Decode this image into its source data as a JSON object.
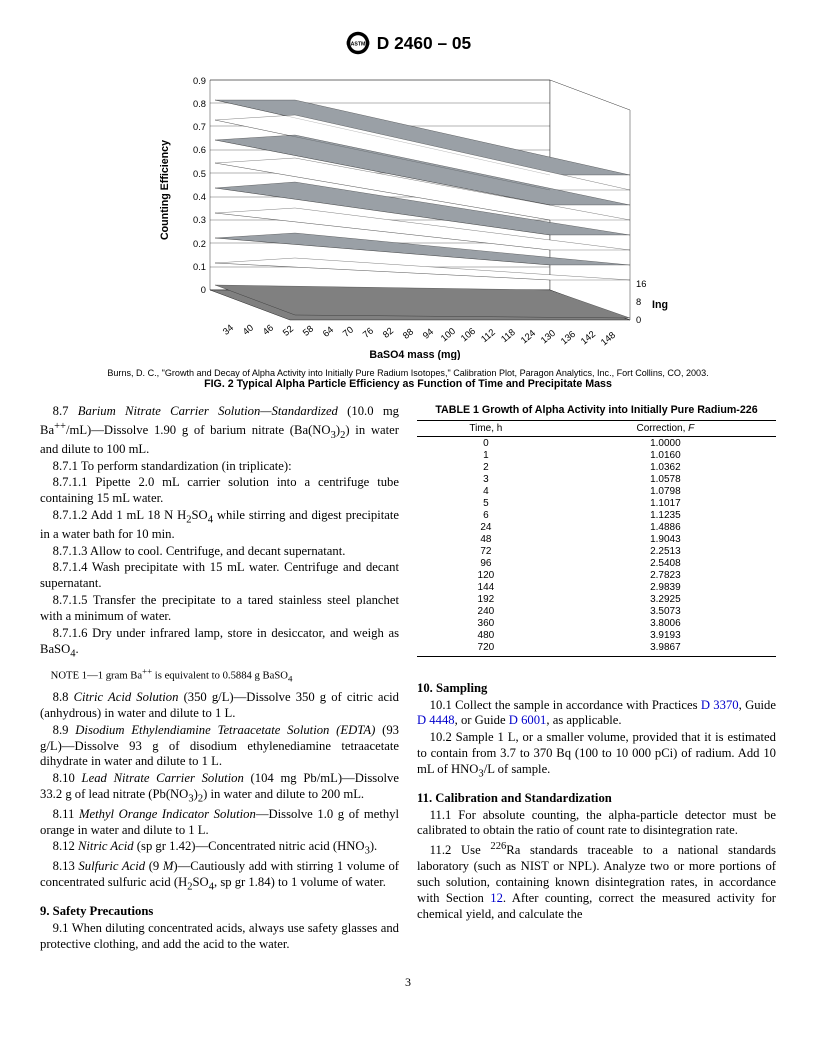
{
  "header": {
    "designation": "D 2460 – 05"
  },
  "figure": {
    "source_citation": "Burns, D. C., \"Growth and Decay of Alpha Activity into Initially Pure Radium Isotopes,\" Calibration Plot, Paragon Analytics, Inc., Fort Collins, CO, 2003.",
    "caption": "FIG. 2 Typical Alpha Particle Efficiency as Function of Time and Precipitate Mass",
    "y_axis_label": "Counting Efficiency",
    "x_axis_label": "BaSO4 mass (mg)",
    "z_axis_label": "Ingrowth Days",
    "y_ticks": [
      "0",
      "0.1",
      "0.2",
      "0.3",
      "0.4",
      "0.5",
      "0.6",
      "0.7",
      "0.8",
      "0.9"
    ],
    "x_ticks": [
      "34",
      "40",
      "46",
      "52",
      "58",
      "64",
      "70",
      "76",
      "82",
      "88",
      "94",
      "100",
      "106",
      "112",
      "118",
      "124",
      "130",
      "136",
      "142",
      "148"
    ],
    "z_ticks": [
      "0",
      "8",
      "16"
    ],
    "band_colors": [
      "#9aa0a6",
      "#ffffff",
      "#9aa0a6",
      "#ffffff",
      "#9aa0a6",
      "#ffffff",
      "#9aa0a6",
      "#ffffff",
      "#9aa0a6"
    ],
    "grid_color": "#000000",
    "floor_color": "#808080"
  },
  "left_column": {
    "p87": "8.7 Barium Nitrate Carrier Solution—Standardized (10.0 mg Ba++/mL)—Dissolve 1.90 g of barium nitrate (Ba(NO3)2) in water and dilute to 100 mL.",
    "p871": "8.7.1 To perform standardization (in triplicate):",
    "p8711": "8.7.1.1 Pipette 2.0 mL carrier solution into a centrifuge tube containing 15 mL water.",
    "p8712": "8.7.1.2 Add 1 mL 18 N H2SO4 while stirring and digest precipitate in a water bath for 10 min.",
    "p8713": "8.7.1.3 Allow to cool. Centrifuge, and decant supernatant.",
    "p8714": "8.7.1.4 Wash precipitate with 15 mL water. Centrifuge and decant supernatant.",
    "p8715": "8.7.1.5 Transfer the precipitate to a tared stainless steel planchet with a minimum of water.",
    "p8716": "8.7.1.6 Dry under infrared lamp, store in desiccator, and weigh as BaSO4.",
    "note1": "NOTE 1—1 gram Ba++ is equivalent to 0.5884 g BaSO4",
    "p88": "8.8 Citric Acid Solution (350 g/L)—Dissolve 350 g of citric acid (anhydrous) in water and dilute to 1 L.",
    "p89": "8.9 Disodium Ethylendiamine Tetraacetate Solution (EDTA) (93 g/L)—Dissolve 93 g of disodium ethylenediamine tetraacetate dihydrate in water and dilute to 1 L.",
    "p810": "8.10 Lead Nitrate Carrier Solution (104 mg Pb/mL)—Dissolve 33.2 g of lead nitrate (Pb(NO3)2) in water and dilute to 200 mL.",
    "p811": "8.11 Methyl Orange Indicator Solution—Dissolve 1.0 g of methyl orange in water and dilute to 1 L.",
    "p812": "8.12 Nitric Acid (sp gr 1.42)—Concentrated nitric acid (HNO3).",
    "p813": "8.13 Sulfuric Acid (9 M)—Cautiously add with stirring 1 volume of concentrated sulfuric acid (H2SO4, sp gr 1.84) to 1 volume of water.",
    "s9_head": "9. Safety Precautions",
    "p91": "9.1 When diluting concentrated acids, always use safety glasses and protective clothing, and add the acid to the water."
  },
  "table1": {
    "title": "TABLE 1  Growth of Alpha Activity into Initially Pure Radium-226",
    "col_time": "Time, h",
    "col_corr": "Correction, F",
    "rows": [
      [
        "0",
        "1.0000"
      ],
      [
        "1",
        "1.0160"
      ],
      [
        "2",
        "1.0362"
      ],
      [
        "3",
        "1.0578"
      ],
      [
        "4",
        "1.0798"
      ],
      [
        "5",
        "1.1017"
      ],
      [
        "6",
        "1.1235"
      ],
      [
        "24",
        "1.4886"
      ],
      [
        "48",
        "1.9043"
      ],
      [
        "72",
        "2.2513"
      ],
      [
        "96",
        "2.5408"
      ],
      [
        "120",
        "2.7823"
      ],
      [
        "144",
        "2.9839"
      ],
      [
        "192",
        "3.2925"
      ],
      [
        "240",
        "3.5073"
      ],
      [
        "360",
        "3.8006"
      ],
      [
        "480",
        "3.9193"
      ],
      [
        "720",
        "3.9867"
      ]
    ]
  },
  "right_column": {
    "s10_head": "10. Sampling",
    "p101a": "10.1 Collect the sample in accordance with Practices ",
    "p101_link1": "D 3370",
    "p101b": ", Guide ",
    "p101_link2": "D 4448",
    "p101c": ", or Guide ",
    "p101_link3": "D 6001",
    "p101d": ", as applicable.",
    "p102": "10.2 Sample 1 L, or a smaller volume, provided that it is estimated to contain from 3.7 to 370 Bq (100 to 10 000 pCi) of radium. Add 10 mL of HNO3/L of sample.",
    "s11_head": "11. Calibration and Standardization",
    "p111": "11.1 For absolute counting, the alpha-particle detector must be calibrated to obtain the ratio of count rate to disintegration rate.",
    "p112a": "11.2 Use 226Ra standards traceable to a national standards laboratory (such as NIST or NPL). Analyze two or more portions of such solution, containing known disintegration rates, in accordance with Section ",
    "p112_link": "12",
    "p112b": ". After counting, correct the measured activity for chemical yield, and calculate the"
  },
  "page_number": "3"
}
